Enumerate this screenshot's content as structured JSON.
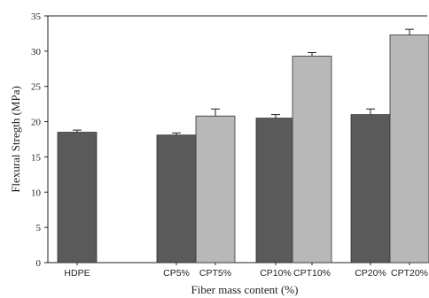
{
  "chart_data": {
    "type": "bar",
    "ylabel": "Flexural Stregth (MPa)",
    "xlabel": "Fiber mass content (%)",
    "ylim": [
      0,
      35
    ],
    "yticks": [
      0,
      5,
      10,
      15,
      20,
      25,
      30,
      35
    ],
    "categories": [
      "HDPE",
      "CP5%",
      "CPT5%",
      "CP10%",
      "CPT10%",
      "CP20%",
      "CPT20%"
    ],
    "values": [
      18.5,
      18.1,
      20.8,
      20.5,
      29.3,
      21.0,
      32.3
    ],
    "errors": [
      0.3,
      0.3,
      1.0,
      0.5,
      0.5,
      0.8,
      0.8
    ],
    "bar_colors": [
      "#5a5a5a",
      "#5a5a5a",
      "#b8b8b8",
      "#5a5a5a",
      "#b8b8b8",
      "#5a5a5a",
      "#b8b8b8"
    ],
    "grid": false
  }
}
